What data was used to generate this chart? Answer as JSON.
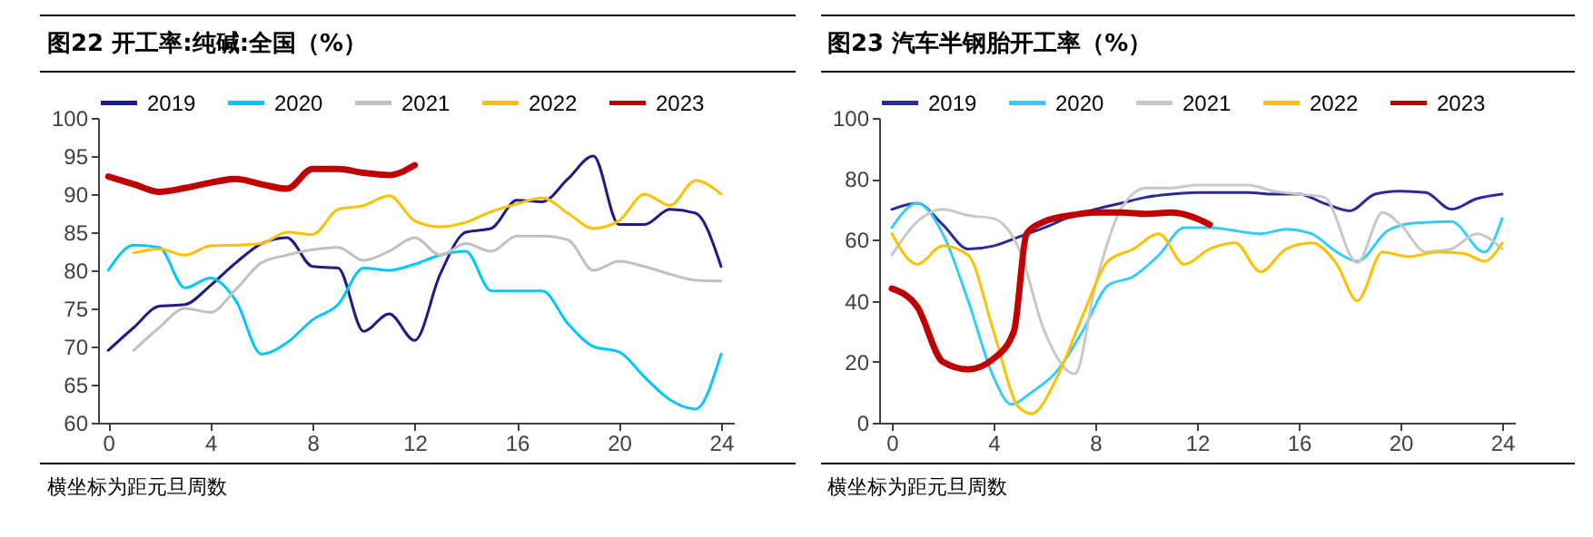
{
  "chart_data": [
    {
      "type": "line",
      "title": "图22 开工率:纯碱:全国（%）",
      "annotations": [
        "横坐标为距元旦周数"
      ],
      "xlim": [
        -0.4,
        24.5
      ],
      "xticks": [
        0,
        4,
        8,
        12,
        16,
        20,
        24
      ],
      "ylim": [
        60,
        100
      ],
      "yticks": [
        60,
        65,
        70,
        75,
        80,
        85,
        90,
        95,
        100
      ],
      "legend": "top",
      "grid": false,
      "series": [
        {
          "name": "2019",
          "color": "#1f1a8a",
          "x": [
            0,
            1,
            2,
            3,
            4,
            5,
            6,
            7,
            8,
            9,
            10,
            11,
            12,
            13,
            14,
            15,
            16,
            17,
            18,
            19,
            20,
            21,
            22,
            23,
            24
          ],
          "values": [
            69.5,
            72.5,
            75.3,
            75.5,
            78,
            81,
            83.5,
            84.3,
            80.5,
            80.3,
            72,
            74.3,
            70.8,
            79.5,
            85,
            85.5,
            89.2,
            89,
            92,
            95,
            86,
            86,
            88,
            87.5,
            80.5
          ]
        },
        {
          "name": "2020",
          "color": "#00c8ff",
          "x": [
            0,
            1,
            2,
            3,
            4,
            5,
            6,
            7,
            8,
            9,
            10,
            11,
            12,
            13,
            14,
            15,
            16,
            17,
            18,
            19,
            20,
            21,
            22,
            23,
            24
          ],
          "values": [
            80,
            83.3,
            83,
            77.7,
            79,
            76,
            69,
            70.5,
            73.5,
            75.5,
            80.3,
            80,
            80.8,
            82,
            82.5,
            77.3,
            77.3,
            77.3,
            73,
            70,
            69.3,
            66,
            63,
            61.8,
            69
          ]
        },
        {
          "name": "2021",
          "color": "#c0c0c0",
          "x": [
            1,
            2,
            3,
            4,
            5,
            6,
            7,
            8,
            9,
            10,
            11,
            12,
            13,
            14,
            15,
            16,
            17,
            18,
            19,
            20,
            21,
            22,
            23,
            24
          ],
          "values": [
            69.5,
            72.5,
            75,
            74.5,
            77.5,
            81,
            82,
            82.7,
            83,
            81.3,
            82.5,
            84.3,
            82,
            83.5,
            82.5,
            84.5,
            84.5,
            84,
            80,
            81.2,
            80.5,
            79.5,
            78.7,
            78.6
          ]
        },
        {
          "name": "2022",
          "color": "#ffc000",
          "x": [
            1,
            2,
            3,
            4,
            5,
            6,
            7,
            8,
            9,
            10,
            11,
            12,
            13,
            14,
            15,
            16,
            17,
            18,
            19,
            20,
            21,
            22,
            23,
            24
          ],
          "values": [
            82.3,
            82.8,
            82,
            83.2,
            83.3,
            83.5,
            85,
            84.7,
            88,
            88.5,
            89.8,
            86.5,
            85.7,
            86.3,
            87.7,
            88.7,
            89.5,
            87.5,
            85.5,
            86.5,
            90,
            88.5,
            91.8,
            90
          ]
        },
        {
          "name": "2023",
          "color": "#c00000",
          "x": [
            0,
            1,
            2,
            3,
            4,
            5,
            6,
            7,
            8,
            9,
            10,
            11,
            12
          ],
          "values": [
            92.3,
            91.3,
            90.3,
            90.8,
            91.5,
            92,
            91.3,
            90.7,
            93.3,
            93.3,
            92.8,
            92.5,
            93.8
          ]
        }
      ]
    },
    {
      "type": "line",
      "title": "图23 汽车半钢胎开工率（%）",
      "annotations": [
        "横坐标为距元旦周数"
      ],
      "xlim": [
        -0.5,
        24.5
      ],
      "xticks": [
        0,
        4,
        8,
        12,
        16,
        20,
        24
      ],
      "ylim": [
        0,
        100
      ],
      "yticks": [
        0,
        20,
        40,
        60,
        80,
        100
      ],
      "legend": "top",
      "grid": false,
      "series": [
        {
          "name": "2019",
          "color": "#2a2a9a",
          "x": [
            0,
            1,
            2,
            3,
            4,
            5,
            6,
            7,
            8,
            9,
            10,
            11,
            12,
            13,
            14,
            15,
            16,
            17,
            18,
            19,
            20,
            21,
            22,
            23,
            24
          ],
          "values": [
            70,
            72,
            65,
            57,
            58,
            61,
            64,
            67.5,
            70,
            72,
            74,
            75,
            75.5,
            75.5,
            75.5,
            75,
            75,
            72,
            69.5,
            75,
            76,
            75.5,
            70,
            73.5,
            75
          ]
        },
        {
          "name": "2020",
          "color": "#33ccff",
          "x": [
            0,
            1,
            2,
            3,
            4,
            4.7,
            5.5,
            6.5,
            7.5,
            8.5,
            9.5,
            10.5,
            11.5,
            12.5,
            14.5,
            15.5,
            16.5,
            17.5,
            18.3,
            19.5,
            20.5,
            22,
            23.3,
            24
          ],
          "values": [
            64,
            72,
            62,
            40,
            15,
            6,
            10,
            17,
            30,
            45,
            48,
            55,
            64,
            64,
            62,
            63.5,
            62,
            56,
            53,
            63,
            65.5,
            66,
            56,
            67
          ]
        },
        {
          "name": "2021",
          "color": "#c8c8c8",
          "x": [
            0,
            1,
            2,
            3,
            4,
            5,
            6,
            7.2,
            8,
            9,
            10,
            11,
            12,
            13,
            14,
            15,
            16,
            17,
            18.3,
            19.3,
            20,
            21,
            22,
            23,
            24
          ],
          "values": [
            55,
            66,
            70,
            68,
            67,
            57,
            30,
            16,
            45,
            70,
            77,
            77,
            78,
            78,
            78,
            76,
            75,
            74,
            52.5,
            69,
            65,
            56,
            57,
            62,
            57
          ]
        },
        {
          "name": "2022",
          "color": "#ffc000",
          "x": [
            0,
            1,
            2,
            3,
            4,
            5,
            5.5,
            6.5,
            7.5,
            8.5,
            9.5,
            10.5,
            11.5,
            12.5,
            13.5,
            14.5,
            15.5,
            16.5,
            17.5,
            18.3,
            19.3,
            20.3,
            21.5,
            22.5,
            23.3,
            24
          ],
          "values": [
            62,
            52,
            58,
            55,
            30,
            5,
            3,
            15,
            35,
            53,
            57,
            62,
            52,
            57,
            59,
            49.5,
            57,
            59,
            52,
            40,
            56,
            54.5,
            56,
            55.5,
            53,
            59
          ]
        },
        {
          "name": "2023",
          "color": "#c00000",
          "x": [
            0,
            1,
            2,
            3,
            4,
            4.8,
            5.3,
            6,
            7,
            8,
            9,
            10,
            11,
            12,
            12.5
          ],
          "values": [
            44,
            38,
            20,
            17.5,
            21,
            30,
            62,
            66,
            68,
            69,
            69,
            68.5,
            69,
            67,
            65
          ]
        }
      ]
    }
  ]
}
